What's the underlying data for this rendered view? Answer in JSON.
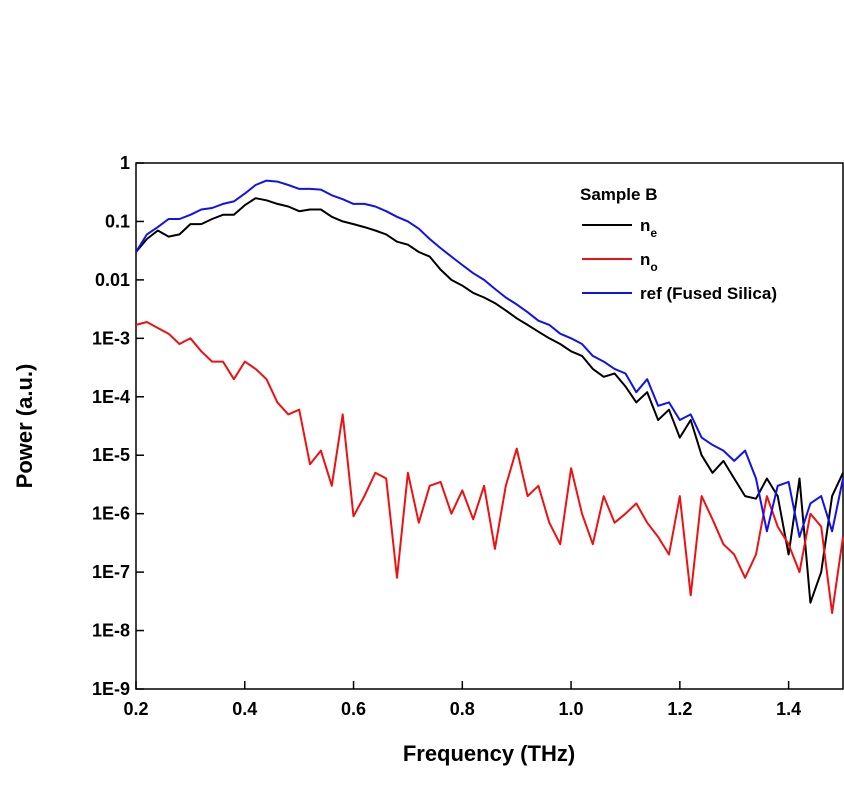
{
  "chart_data": {
    "type": "line",
    "xlabel": "Frequency (THz)",
    "ylabel": "Power (a.u.)",
    "legend_title": "Sample B",
    "legend": "upper-right",
    "ylog": true,
    "xlim": [
      0.2,
      1.5
    ],
    "xticks": [
      0.2,
      0.4,
      0.6,
      0.8,
      {
        "value": 1,
        "label": "1.0"
      },
      1.2,
      1.4
    ],
    "ylim": [
      1e-09,
      1
    ],
    "yticks": [
      {
        "value": 1e-09,
        "label": "1E-9"
      },
      {
        "value": 1e-08,
        "label": "1E-8"
      },
      {
        "value": 1e-07,
        "label": "1E-7"
      },
      {
        "value": 1e-06,
        "label": "1E-6"
      },
      {
        "value": 1e-05,
        "label": "1E-5"
      },
      {
        "value": 0.0001,
        "label": "1E-4"
      },
      {
        "value": 0.001,
        "label": "1E-3"
      },
      0.01,
      0.1,
      1
    ],
    "x": [
      0.2,
      0.22,
      0.24,
      0.26,
      0.28,
      0.3,
      0.32,
      0.34,
      0.36,
      0.38,
      0.4,
      0.42,
      0.44,
      0.46,
      0.48,
      0.5,
      0.52,
      0.54,
      0.56,
      0.58,
      0.6,
      0.62,
      0.64,
      0.66,
      0.68,
      0.7,
      0.72,
      0.74,
      0.76,
      0.78,
      0.8,
      0.82,
      0.84,
      0.86,
      0.88,
      0.9,
      0.92,
      0.94,
      0.96,
      0.98,
      1.0,
      1.02,
      1.04,
      1.06,
      1.08,
      1.1,
      1.12,
      1.14,
      1.16,
      1.18,
      1.2,
      1.22,
      1.24,
      1.26,
      1.28,
      1.3,
      1.32,
      1.34,
      1.36,
      1.38,
      1.4,
      1.42,
      1.44,
      1.46,
      1.48,
      1.5
    ],
    "series": [
      {
        "name": "n",
        "subscript": "e",
        "color": "#000000",
        "values": [
          0.03,
          0.05,
          0.07,
          0.055,
          0.06,
          0.09,
          0.09,
          0.11,
          0.13,
          0.13,
          0.19,
          0.25,
          0.23,
          0.2,
          0.18,
          0.15,
          0.16,
          0.16,
          0.12,
          0.1,
          0.09,
          0.08,
          0.07,
          0.06,
          0.045,
          0.04,
          0.03,
          0.025,
          0.015,
          0.01,
          0.008,
          0.006,
          0.005,
          0.004,
          0.003,
          0.0022,
          0.0017,
          0.0013,
          0.001,
          0.0008,
          0.0006,
          0.0005,
          0.0003,
          0.00022,
          0.00025,
          0.00015,
          8e-05,
          0.00012,
          4e-05,
          6e-05,
          2e-05,
          4e-05,
          1e-05,
          5e-06,
          8e-06,
          4e-06,
          2e-06,
          1.8e-06,
          4e-06,
          2e-06,
          2e-07,
          4e-06,
          3e-08,
          1e-07,
          2e-06,
          5e-06
        ]
      },
      {
        "name": "n",
        "subscript": "o",
        "color": "#ee1111",
        "values": [
          0.0017,
          0.0019,
          0.0015,
          0.0012,
          0.0008,
          0.001,
          0.0006,
          0.0004,
          0.0004,
          0.0002,
          0.0004,
          0.0003,
          0.0002,
          8e-05,
          5e-05,
          6e-05,
          7e-06,
          1.2e-05,
          3e-06,
          5e-05,
          9e-07,
          2e-06,
          5e-06,
          4e-06,
          8e-08,
          5e-06,
          7e-07,
          3e-06,
          3.5e-06,
          1e-06,
          2.5e-06,
          8e-07,
          3e-06,
          2.5e-07,
          3e-06,
          1.3e-05,
          2e-06,
          3e-06,
          7e-07,
          3e-07,
          6e-06,
          1e-06,
          3e-07,
          2e-06,
          7e-07,
          1e-06,
          1.5e-06,
          7e-07,
          4e-07,
          2e-07,
          2e-06,
          4e-08,
          2e-06,
          8e-07,
          3e-07,
          2e-07,
          8e-08,
          2e-07,
          2e-06,
          6e-07,
          3e-07,
          1e-07,
          1e-06,
          6e-07,
          2e-08,
          4e-07
        ]
      },
      {
        "name": "ref (Fused Silica)",
        "color": "#1111ee",
        "values": [
          0.03,
          0.06,
          0.08,
          0.11,
          0.11,
          0.13,
          0.16,
          0.17,
          0.2,
          0.22,
          0.3,
          0.42,
          0.5,
          0.48,
          0.42,
          0.36,
          0.36,
          0.35,
          0.28,
          0.24,
          0.2,
          0.2,
          0.18,
          0.15,
          0.12,
          0.1,
          0.075,
          0.05,
          0.035,
          0.025,
          0.018,
          0.013,
          0.01,
          0.007,
          0.005,
          0.0038,
          0.0028,
          0.002,
          0.0017,
          0.0012,
          0.001,
          0.0008,
          0.0005,
          0.0004,
          0.0003,
          0.00025,
          0.00012,
          0.0002,
          7e-05,
          8e-05,
          4e-05,
          5e-05,
          2e-05,
          1.5e-05,
          1.2e-05,
          8e-06,
          1.2e-05,
          4e-06,
          5e-07,
          3e-06,
          3.5e-06,
          4e-07,
          1.5e-06,
          2e-06,
          5e-07,
          4e-06
        ]
      }
    ]
  }
}
